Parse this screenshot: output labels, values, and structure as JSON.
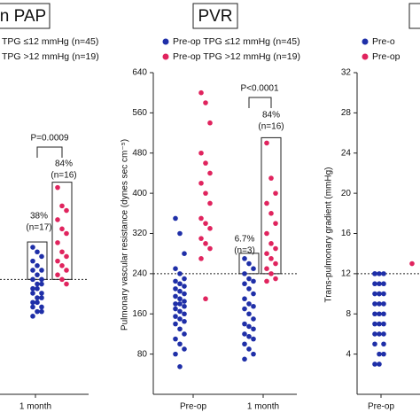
{
  "chart_data": [
    {
      "type": "dot",
      "title": "n PAP",
      "categories": [
        "1 month"
      ],
      "series": [
        {
          "name": "TPG ≤12 mmHg (n=45)",
          "color": "#1f2fa8",
          "values": [
            [
              32,
              31,
              30,
              29,
              28,
              27,
              27,
              26,
              25,
              25,
              24,
              24,
              23,
              23,
              22,
              22,
              21,
              21,
              20,
              20,
              19,
              19,
              18,
              18,
              17
            ]
          ]
        },
        {
          "name": "TPG >12 mmHg (n=19)",
          "color": "#e0245e",
          "values": [
            [
              45,
              41,
              40,
              38,
              36,
              35,
              33,
              31,
              30,
              29,
              28,
              27,
              26,
              25,
              24
            ]
          ]
        }
      ],
      "ylim": [
        0,
        70
      ],
      "reference_line": 25,
      "annotations": [
        "P=0.0009",
        "38%",
        "(n=17)",
        "84%",
        "(n=16)"
      ]
    },
    {
      "type": "dot",
      "title": "PVR",
      "y_label": "Pulmonary vascular resistance (dynes sec cm⁻⁵)",
      "categories": [
        "Pre-op",
        "1 month"
      ],
      "series": [
        {
          "name": "Pre-op TPG ≤12 mmHg (n=45)",
          "color": "#1f2fa8",
          "values": [
            [
              350,
              320,
              280,
              250,
              240,
              230,
              225,
              220,
              215,
              210,
              205,
              200,
              195,
              190,
              185,
              180,
              180,
              175,
              170,
              165,
              160,
              155,
              150,
              145,
              140,
              130,
              120,
              110,
              100,
              90,
              80,
              55
            ],
            [
              270,
              260,
              250,
              240,
              230,
              225,
              220,
              210,
              200,
              190,
              180,
              175,
              170,
              160,
              150,
              140,
              135,
              130,
              120,
              115,
              110,
              100,
              90,
              80,
              70
            ]
          ]
        },
        {
          "name": "Pre-op TPG >12 mmHg (n=19)",
          "color": "#e0245e",
          "values": [
            [
              600,
              580,
              540,
              480,
              460,
              440,
              420,
              400,
              380,
              350,
              340,
              330,
              310,
              300,
              290,
              270,
              190
            ],
            [
              500,
              430,
              400,
              380,
              360,
              340,
              320,
              300,
              290,
              280,
              270,
              260,
              250,
              240,
              230,
              225
            ]
          ]
        }
      ],
      "ylim": [
        0,
        640
      ],
      "yticks": [
        80,
        160,
        240,
        320,
        400,
        480,
        560,
        640
      ],
      "reference_line": 240,
      "annotations": [
        "P<0.0001",
        "6.7%",
        "(n=3)",
        "84%",
        "(n=16)"
      ]
    },
    {
      "type": "dot",
      "y_label": "Trans-pulmonary gradient (mmHg)",
      "categories": [
        "Pre-op"
      ],
      "series": [
        {
          "name": "Pre-o",
          "color": "#1f2fa8",
          "values": [
            [
              12,
              12,
              12,
              12,
              11,
              11,
              11,
              10,
              10,
              10,
              10,
              9,
              9,
              9,
              8,
              8,
              8,
              7,
              7,
              7,
              6,
              6,
              6,
              5,
              5,
              4,
              4,
              3,
              3
            ]
          ]
        },
        {
          "name": "Pre-op",
          "color": "#e0245e",
          "values": [
            [
              13
            ]
          ]
        }
      ],
      "ylim": [
        0,
        32
      ],
      "yticks": [
        4,
        8,
        12,
        16,
        20,
        24,
        28,
        32
      ],
      "reference_line": 12
    }
  ]
}
